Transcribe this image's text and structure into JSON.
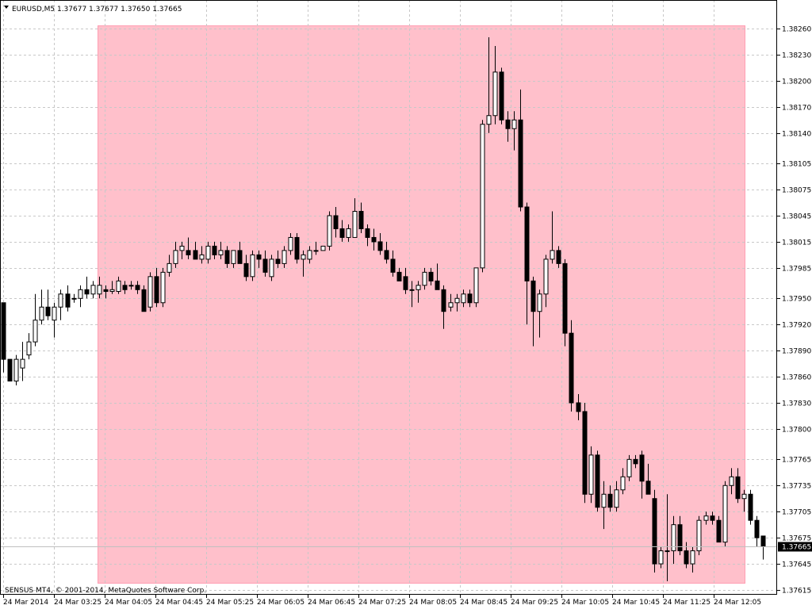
{
  "window": {
    "header_text": "EURUSD,M5  1.37677 1.37677 1.37650 1.37665",
    "copyright": "SENSUS MT4, © 2001-2014, MetaQuotes Software Corp."
  },
  "chart_data": {
    "type": "candlestick",
    "symbol": "EURUSD",
    "timeframe": "M5",
    "ohlc_header": {
      "open": 1.37677,
      "high": 1.37677,
      "low": 1.3765,
      "close": 1.37665
    },
    "current_price": "1.37665",
    "ylim": [
      1.3761,
      1.38275
    ],
    "y_ticks": [
      "1.38260",
      "1.38230",
      "1.38200",
      "1.38170",
      "1.38140",
      "1.38105",
      "1.38075",
      "1.38045",
      "1.38015",
      "1.37985",
      "1.37950",
      "1.37920",
      "1.37890",
      "1.37860",
      "1.37830",
      "1.37800",
      "1.37765",
      "1.37735",
      "1.37705",
      "1.37675",
      "1.37645",
      "1.37615"
    ],
    "x_ticks": [
      "24 Mar 2014",
      "24 Mar 03:25",
      "24 Mar 04:05",
      "24 Mar 04:45",
      "24 Mar 05:25",
      "24 Mar 06:05",
      "24 Mar 06:45",
      "24 Mar 07:25",
      "24 Mar 08:05",
      "24 Mar 08:45",
      "24 Mar 09:25",
      "24 Mar 10:05",
      "24 Mar 10:45",
      "24 Mar 11:25",
      "24 Mar 12:05"
    ],
    "grid": true,
    "highlight": {
      "from": "24 Mar 03:35",
      "to": "24 Mar 12:15",
      "color": "#ffc0cb"
    },
    "colors": {
      "bull_body": "#ffffff",
      "bear_body": "#000000",
      "wick": "#000000",
      "grid": "#c8c8c8",
      "highlight": "#ffc0cb"
    },
    "candles": [
      {
        "o": 1.37945,
        "h": 1.37945,
        "l": 1.37865,
        "c": 1.3788
      },
      {
        "o": 1.3788,
        "h": 1.3788,
        "l": 1.37855,
        "c": 1.37855
      },
      {
        "o": 1.37855,
        "h": 1.37885,
        "l": 1.3785,
        "c": 1.3788
      },
      {
        "o": 1.3787,
        "h": 1.379,
        "l": 1.37855,
        "c": 1.3788
      },
      {
        "o": 1.37885,
        "h": 1.3791,
        "l": 1.3788,
        "c": 1.379
      },
      {
        "o": 1.379,
        "h": 1.37955,
        "l": 1.37895,
        "c": 1.37925
      },
      {
        "o": 1.37925,
        "h": 1.3796,
        "l": 1.3792,
        "c": 1.3794
      },
      {
        "o": 1.3794,
        "h": 1.3796,
        "l": 1.37925,
        "c": 1.3793
      },
      {
        "o": 1.37925,
        "h": 1.37945,
        "l": 1.37905,
        "c": 1.3794
      },
      {
        "o": 1.3794,
        "h": 1.3796,
        "l": 1.37925,
        "c": 1.37955
      },
      {
        "o": 1.37955,
        "h": 1.37965,
        "l": 1.37935,
        "c": 1.3794
      },
      {
        "o": 1.3795,
        "h": 1.37955,
        "l": 1.37945,
        "c": 1.3795
      },
      {
        "o": 1.3795,
        "h": 1.37965,
        "l": 1.3794,
        "c": 1.3796
      },
      {
        "o": 1.3796,
        "h": 1.37975,
        "l": 1.3795,
        "c": 1.37955
      },
      {
        "o": 1.37955,
        "h": 1.3797,
        "l": 1.3795,
        "c": 1.37965
      },
      {
        "o": 1.37955,
        "h": 1.37975,
        "l": 1.3795,
        "c": 1.37965
      },
      {
        "o": 1.3796,
        "h": 1.37965,
        "l": 1.3795,
        "c": 1.37958
      },
      {
        "o": 1.37958,
        "h": 1.3797,
        "l": 1.37955,
        "c": 1.3796
      },
      {
        "o": 1.37958,
        "h": 1.37975,
        "l": 1.37955,
        "c": 1.3797
      },
      {
        "o": 1.37965,
        "h": 1.3797,
        "l": 1.37955,
        "c": 1.3796
      },
      {
        "o": 1.37965,
        "h": 1.3797,
        "l": 1.3796,
        "c": 1.37965
      },
      {
        "o": 1.37965,
        "h": 1.3797,
        "l": 1.37955,
        "c": 1.3796
      },
      {
        "o": 1.3796,
        "h": 1.37965,
        "l": 1.37935,
        "c": 1.37935
      },
      {
        "o": 1.3794,
        "h": 1.3798,
        "l": 1.37935,
        "c": 1.37975
      },
      {
        "o": 1.37975,
        "h": 1.37985,
        "l": 1.3794,
        "c": 1.37945
      },
      {
        "o": 1.37945,
        "h": 1.37985,
        "l": 1.3794,
        "c": 1.3798
      },
      {
        "o": 1.3798,
        "h": 1.38,
        "l": 1.37975,
        "c": 1.3799
      },
      {
        "o": 1.3799,
        "h": 1.38015,
        "l": 1.37985,
        "c": 1.38005
      },
      {
        "o": 1.38005,
        "h": 1.38015,
        "l": 1.37995,
        "c": 1.3801
      },
      {
        "o": 1.38005,
        "h": 1.3802,
        "l": 1.37995,
        "c": 1.38
      },
      {
        "o": 1.38005,
        "h": 1.38015,
        "l": 1.37995,
        "c": 1.37995
      },
      {
        "o": 1.37995,
        "h": 1.3801,
        "l": 1.3799,
        "c": 1.38
      },
      {
        "o": 1.37995,
        "h": 1.38015,
        "l": 1.3799,
        "c": 1.3801
      },
      {
        "o": 1.3801,
        "h": 1.38015,
        "l": 1.37995,
        "c": 1.38
      },
      {
        "o": 1.38,
        "h": 1.38015,
        "l": 1.37995,
        "c": 1.38005
      },
      {
        "o": 1.38005,
        "h": 1.3801,
        "l": 1.37985,
        "c": 1.3799
      },
      {
        "o": 1.3799,
        "h": 1.38005,
        "l": 1.37985,
        "c": 1.38005
      },
      {
        "o": 1.38005,
        "h": 1.38015,
        "l": 1.3799,
        "c": 1.3799
      },
      {
        "o": 1.3799,
        "h": 1.38,
        "l": 1.3797,
        "c": 1.37975
      },
      {
        "o": 1.37975,
        "h": 1.38005,
        "l": 1.3797,
        "c": 1.38
      },
      {
        "o": 1.38,
        "h": 1.38005,
        "l": 1.37985,
        "c": 1.37995
      },
      {
        "o": 1.37995,
        "h": 1.38005,
        "l": 1.37975,
        "c": 1.3798
      },
      {
        "o": 1.37975,
        "h": 1.38,
        "l": 1.3797,
        "c": 1.37995
      },
      {
        "o": 1.37995,
        "h": 1.38005,
        "l": 1.37985,
        "c": 1.3799
      },
      {
        "o": 1.3799,
        "h": 1.3801,
        "l": 1.37985,
        "c": 1.38005
      },
      {
        "o": 1.38005,
        "h": 1.38025,
        "l": 1.38,
        "c": 1.3802
      },
      {
        "o": 1.3802,
        "h": 1.38025,
        "l": 1.3799,
        "c": 1.37995
      },
      {
        "o": 1.37995,
        "h": 1.38005,
        "l": 1.37975,
        "c": 1.38
      },
      {
        "o": 1.37995,
        "h": 1.3801,
        "l": 1.3799,
        "c": 1.38005
      },
      {
        "o": 1.38005,
        "h": 1.38015,
        "l": 1.38,
        "c": 1.38005
      },
      {
        "o": 1.38005,
        "h": 1.3801,
        "l": 1.38005,
        "c": 1.3801
      },
      {
        "o": 1.3801,
        "h": 1.3805,
        "l": 1.38005,
        "c": 1.38045
      },
      {
        "o": 1.38045,
        "h": 1.38055,
        "l": 1.3802,
        "c": 1.3803
      },
      {
        "o": 1.3803,
        "h": 1.3804,
        "l": 1.38015,
        "c": 1.3802
      },
      {
        "o": 1.3802,
        "h": 1.38035,
        "l": 1.38015,
        "c": 1.3803
      },
      {
        "o": 1.3802,
        "h": 1.38065,
        "l": 1.3802,
        "c": 1.3805
      },
      {
        "o": 1.3805,
        "h": 1.3806,
        "l": 1.38025,
        "c": 1.3803
      },
      {
        "o": 1.3803,
        "h": 1.38035,
        "l": 1.3801,
        "c": 1.3802
      },
      {
        "o": 1.3802,
        "h": 1.3803,
        "l": 1.38005,
        "c": 1.38015
      },
      {
        "o": 1.38015,
        "h": 1.38025,
        "l": 1.38,
        "c": 1.38005
      },
      {
        "o": 1.38005,
        "h": 1.38015,
        "l": 1.3799,
        "c": 1.37995
      },
      {
        "o": 1.37995,
        "h": 1.38005,
        "l": 1.37975,
        "c": 1.3798
      },
      {
        "o": 1.3798,
        "h": 1.37985,
        "l": 1.3797,
        "c": 1.3797
      },
      {
        "o": 1.37975,
        "h": 1.37985,
        "l": 1.37955,
        "c": 1.3796
      },
      {
        "o": 1.3796,
        "h": 1.3797,
        "l": 1.3794,
        "c": 1.3796
      },
      {
        "o": 1.3796,
        "h": 1.3797,
        "l": 1.37945,
        "c": 1.37965
      },
      {
        "o": 1.37965,
        "h": 1.37985,
        "l": 1.3796,
        "c": 1.3798
      },
      {
        "o": 1.3798,
        "h": 1.37985,
        "l": 1.37965,
        "c": 1.3797
      },
      {
        "o": 1.3797,
        "h": 1.3799,
        "l": 1.3796,
        "c": 1.3796
      },
      {
        "o": 1.3796,
        "h": 1.37965,
        "l": 1.37915,
        "c": 1.37935
      },
      {
        "o": 1.3794,
        "h": 1.37955,
        "l": 1.37935,
        "c": 1.37945
      },
      {
        "o": 1.37945,
        "h": 1.37955,
        "l": 1.37935,
        "c": 1.3795
      },
      {
        "o": 1.37945,
        "h": 1.3796,
        "l": 1.3794,
        "c": 1.37955
      },
      {
        "o": 1.37955,
        "h": 1.3796,
        "l": 1.3794,
        "c": 1.37945
      },
      {
        "o": 1.37945,
        "h": 1.37985,
        "l": 1.3794,
        "c": 1.37985
      },
      {
        "o": 1.37985,
        "h": 1.38155,
        "l": 1.3798,
        "c": 1.3815
      },
      {
        "o": 1.3815,
        "h": 1.3825,
        "l": 1.3814,
        "c": 1.3816
      },
      {
        "o": 1.3816,
        "h": 1.3824,
        "l": 1.3815,
        "c": 1.3821
      },
      {
        "o": 1.3821,
        "h": 1.38215,
        "l": 1.3815,
        "c": 1.38155
      },
      {
        "o": 1.38155,
        "h": 1.38165,
        "l": 1.3813,
        "c": 1.38145
      },
      {
        "o": 1.38145,
        "h": 1.38165,
        "l": 1.3812,
        "c": 1.38155
      },
      {
        "o": 1.38155,
        "h": 1.3819,
        "l": 1.3805,
        "c": 1.38055
      },
      {
        "o": 1.38055,
        "h": 1.3806,
        "l": 1.3792,
        "c": 1.3797
      },
      {
        "o": 1.3797,
        "h": 1.37975,
        "l": 1.37895,
        "c": 1.37935
      },
      {
        "o": 1.37935,
        "h": 1.3796,
        "l": 1.37905,
        "c": 1.37955
      },
      {
        "o": 1.37955,
        "h": 1.38,
        "l": 1.3794,
        "c": 1.37995
      },
      {
        "o": 1.37995,
        "h": 1.3805,
        "l": 1.3799,
        "c": 1.38005
      },
      {
        "o": 1.38005,
        "h": 1.3801,
        "l": 1.37985,
        "c": 1.3799
      },
      {
        "o": 1.3799,
        "h": 1.37995,
        "l": 1.37895,
        "c": 1.3791
      },
      {
        "o": 1.3791,
        "h": 1.37925,
        "l": 1.3782,
        "c": 1.3783
      },
      {
        "o": 1.3783,
        "h": 1.3784,
        "l": 1.3781,
        "c": 1.3782
      },
      {
        "o": 1.3782,
        "h": 1.3783,
        "l": 1.37715,
        "c": 1.37725
      },
      {
        "o": 1.37725,
        "h": 1.3778,
        "l": 1.37715,
        "c": 1.3777
      },
      {
        "o": 1.3777,
        "h": 1.37775,
        "l": 1.37705,
        "c": 1.3771
      },
      {
        "o": 1.3771,
        "h": 1.3774,
        "l": 1.37685,
        "c": 1.37725
      },
      {
        "o": 1.37725,
        "h": 1.37735,
        "l": 1.37705,
        "c": 1.3771
      },
      {
        "o": 1.3771,
        "h": 1.3774,
        "l": 1.37705,
        "c": 1.3773
      },
      {
        "o": 1.3773,
        "h": 1.37755,
        "l": 1.37725,
        "c": 1.37745
      },
      {
        "o": 1.37745,
        "h": 1.3777,
        "l": 1.3774,
        "c": 1.37765
      },
      {
        "o": 1.37765,
        "h": 1.3777,
        "l": 1.37755,
        "c": 1.3776
      },
      {
        "o": 1.3777,
        "h": 1.37775,
        "l": 1.3772,
        "c": 1.3774
      },
      {
        "o": 1.3774,
        "h": 1.3776,
        "l": 1.37725,
        "c": 1.37725
      },
      {
        "o": 1.3772,
        "h": 1.3773,
        "l": 1.37635,
        "c": 1.37645
      },
      {
        "o": 1.37645,
        "h": 1.37665,
        "l": 1.3764,
        "c": 1.3766
      },
      {
        "o": 1.3766,
        "h": 1.37725,
        "l": 1.37625,
        "c": 1.3766
      },
      {
        "o": 1.3766,
        "h": 1.377,
        "l": 1.37645,
        "c": 1.3769
      },
      {
        "o": 1.3769,
        "h": 1.377,
        "l": 1.37655,
        "c": 1.3766
      },
      {
        "o": 1.3766,
        "h": 1.3767,
        "l": 1.3764,
        "c": 1.37645
      },
      {
        "o": 1.37645,
        "h": 1.37665,
        "l": 1.37635,
        "c": 1.3766
      },
      {
        "o": 1.3766,
        "h": 1.377,
        "l": 1.37655,
        "c": 1.37695
      },
      {
        "o": 1.37695,
        "h": 1.37705,
        "l": 1.3769,
        "c": 1.377
      },
      {
        "o": 1.377,
        "h": 1.37705,
        "l": 1.3769,
        "c": 1.37695
      },
      {
        "o": 1.37695,
        "h": 1.377,
        "l": 1.3767,
        "c": 1.3767
      },
      {
        "o": 1.3767,
        "h": 1.3774,
        "l": 1.37665,
        "c": 1.37735
      },
      {
        "o": 1.37735,
        "h": 1.37755,
        "l": 1.37725,
        "c": 1.37745
      },
      {
        "o": 1.37745,
        "h": 1.37755,
        "l": 1.37715,
        "c": 1.3772
      },
      {
        "o": 1.3772,
        "h": 1.3773,
        "l": 1.37705,
        "c": 1.37725
      },
      {
        "o": 1.37725,
        "h": 1.3773,
        "l": 1.3769,
        "c": 1.37695
      },
      {
        "o": 1.37695,
        "h": 1.377,
        "l": 1.37665,
        "c": 1.37675
      },
      {
        "o": 1.37677,
        "h": 1.37677,
        "l": 1.3765,
        "c": 1.37665
      }
    ]
  }
}
